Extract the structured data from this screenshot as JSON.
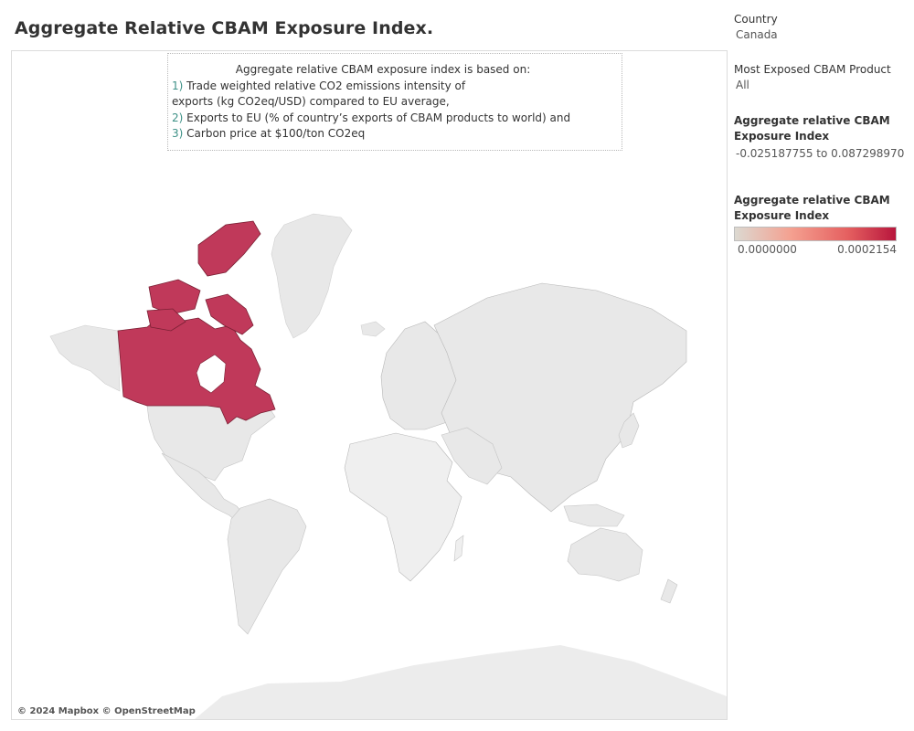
{
  "title": "Aggregate Relative CBAM Exposure Index.",
  "annotation": {
    "heading": "Aggregate relative CBAM exposure index is based on:",
    "items": [
      {
        "num": "1)",
        "text": "Trade weighted relative CO2 emissions intensity of"
      },
      {
        "num": "",
        "text": "exports (kg CO2eq/USD) compared to EU average,"
      },
      {
        "num": "2)",
        "text": "Exports to EU (% of country’s exports of CBAM products to world) and"
      },
      {
        "num": "3)",
        "text": "Carbon price at $100/ton CO2eq"
      }
    ]
  },
  "attribution": "© 2024 Mapbox © OpenStreetMap",
  "filters": {
    "country": {
      "label": "Country",
      "value": "Canada"
    },
    "product": {
      "label": "Most Exposed CBAM Product",
      "value": "All"
    },
    "range": {
      "label": "Aggregate relative CBAM Exposure Index",
      "value": "-0.025187755 to 0.087298970"
    }
  },
  "legend": {
    "title": "Aggregate relative CBAM Exposure Index",
    "min_label": "0.0000000",
    "max_label": "0.0002154",
    "colors": [
      "#dcd9d1",
      "#f4a090",
      "#e56060",
      "#b8163d"
    ]
  },
  "map": {
    "highlighted_country": "Canada",
    "highlight_color": "#c0395a",
    "land_color": "#e8e8e8",
    "border_color": "#b0b0b0"
  }
}
